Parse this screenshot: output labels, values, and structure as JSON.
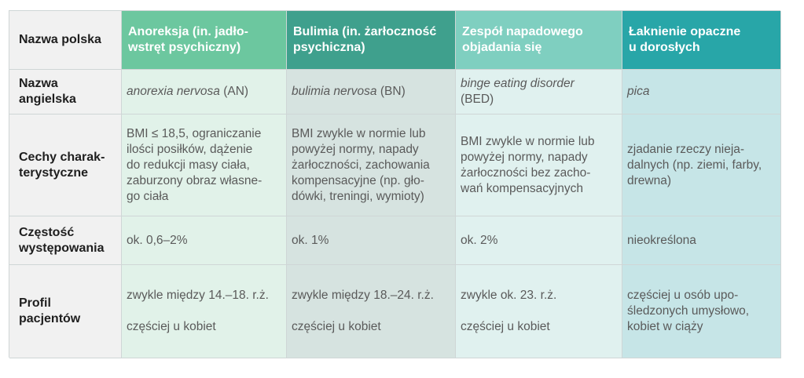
{
  "header": {
    "col0": "Nazwa polska",
    "col1": "Anoreksja (in. jadło-\nwstręt psychiczny)",
    "col2": "Bulimia (in. żarłoczność\npsychiczna)",
    "col3": "Zespół napadowego\nobjadania się",
    "col4": "Łaknienie opaczne\nu dorosłych"
  },
  "rows": {
    "english": {
      "label": "Nazwa\nangielska",
      "c1_term": "anorexia nervosa",
      "c1_abbr": " (AN)",
      "c2_term": "bulimia nervosa",
      "c2_abbr": " (BN)",
      "c3_term": "binge eating disorder",
      "c3_abbr": "(BED)",
      "c4_term": "pica"
    },
    "features": {
      "label": "Cechy charak-\nterystyczne",
      "c1": "BMI ≤ 18,5, ograniczanie\nilości posiłków, dążenie\ndo redukcji masy ciała,\nzaburzony obraz własne-\ngo ciała",
      "c2": "BMI zwykle w normie lub\npowyżej normy, napady\nżarłoczności, zachowania\nkompensacyjne (np. gło-\ndówki, treningi, wymioty)",
      "c3": "BMI zwykle w normie lub\npowyżej normy, napady\nżarłoczności bez zacho-\nwań kompensacyjnych",
      "c4": "zjadanie rzeczy nieja-\ndalnych (np. ziemi, farby,\ndrewna)"
    },
    "frequency": {
      "label": "Częstość\nwystępowania",
      "c1": "ok. 0,6–2%",
      "c2": "ok. 1%",
      "c3": "ok. 2%",
      "c4": "nieokreślona"
    },
    "profile": {
      "label": "Profil\npacjentów",
      "c1_a": "zwykle między 14.–18. r.ż.",
      "c1_b": "częściej u kobiet",
      "c2_a": "zwykle między 18.–24. r.ż.",
      "c2_b": "częściej u kobiet",
      "c3_a": "zwykle ok. 23. r.ż.",
      "c3_b": "częściej u kobiet",
      "c4": "częściej u osób upo-\nśledzonych umysłowo,\nkobiet w ciąży"
    }
  }
}
